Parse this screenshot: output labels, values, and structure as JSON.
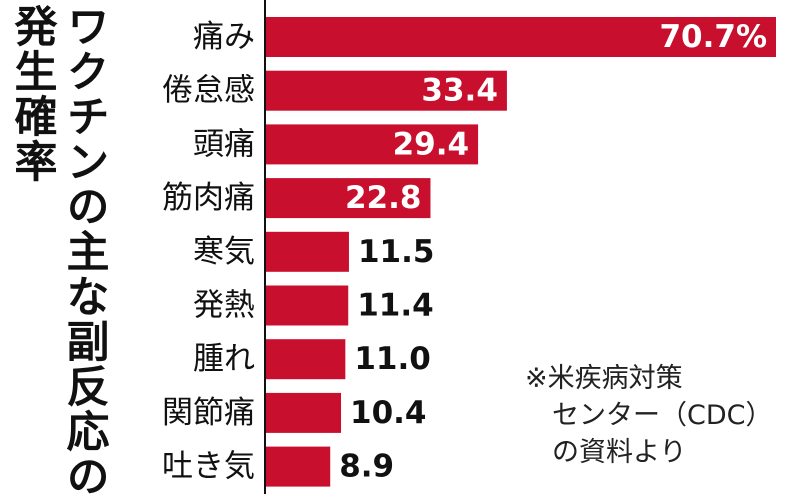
{
  "title": {
    "main": "ワクチンの主な副反応の",
    "sub": "発生確率"
  },
  "note": {
    "line1": "※米疾病対策",
    "line2": "センター（CDC）",
    "line3": "の資料より"
  },
  "colors": {
    "bar": "#c8102e",
    "label_inside": "#ffffff",
    "label_outside": "#111111"
  },
  "chart_data": {
    "type": "bar",
    "orientation": "horizontal",
    "categories": [
      "痛み",
      "倦怠感",
      "頭痛",
      "筋肉痛",
      "寒気",
      "発熱",
      "腫れ",
      "関節痛",
      "吐き気"
    ],
    "values": [
      70.7,
      33.4,
      29.4,
      22.8,
      11.5,
      11.4,
      11.0,
      10.4,
      8.9
    ],
    "value_labels": [
      "70.7%",
      "33.4",
      "29.4",
      "22.8",
      "11.5",
      "11.4",
      "11.0",
      "10.4",
      "8.9"
    ],
    "unit": "%",
    "xlim": [
      0,
      70.7
    ],
    "grid": false,
    "legend": "none"
  }
}
